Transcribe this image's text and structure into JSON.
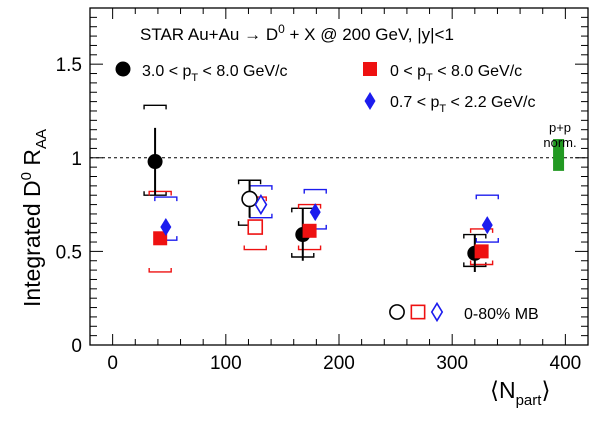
{
  "chart_data": {
    "type": "scatter",
    "title": "STAR Au+Au → D⁰ + X @ 200 GeV,  |y|<1",
    "xlabel": "⟨N_part⟩",
    "ylabel": "Integrated D⁰ R_AA",
    "xlim": [
      -20,
      420
    ],
    "ylim": [
      0,
      1.8
    ],
    "xticks": [
      0,
      100,
      200,
      300,
      400
    ],
    "yticks": [
      0,
      0.5,
      1,
      1.5
    ],
    "xtick_labels": [
      "0",
      "100",
      "200",
      "300",
      "400"
    ],
    "ytick_labels": [
      "0",
      "0.5",
      "1",
      "1.5"
    ],
    "reference_line": 1.0,
    "grid": false,
    "legend_position": "top",
    "series": [
      {
        "name": "3.0 < p_T < 8.0 GeV/c",
        "marker": "circle",
        "color": "#000000",
        "points": [
          {
            "x": 37.5,
            "y": 0.98,
            "stat": 0.18,
            "sys_lo": 0.18,
            "sys_hi": 0.3
          },
          {
            "x": 168,
            "y": 0.59,
            "stat": 0.14,
            "sys_lo": 0.12,
            "sys_hi": 0.14
          },
          {
            "x": 320,
            "y": 0.49,
            "stat": 0.1,
            "sys_lo": 0.07,
            "sys_hi": 0.1
          }
        ]
      },
      {
        "name": "0 < p_T < 8.0 GeV/c",
        "marker": "square",
        "color": "#ee1111",
        "points": [
          {
            "x": 42,
            "y": 0.57,
            "stat": 0.03,
            "sys_lo": 0.18,
            "sys_hi": 0.25
          },
          {
            "x": 174,
            "y": 0.61,
            "stat": 0.03,
            "sys_lo": 0.1,
            "sys_hi": 0.14
          },
          {
            "x": 326,
            "y": 0.5,
            "stat": 0.03,
            "sys_lo": 0.07,
            "sys_hi": 0.12
          }
        ]
      },
      {
        "name": "0.7 < p_T < 2.2 GeV/c",
        "marker": "diamond",
        "color": "#1c1cee",
        "points": [
          {
            "x": 47,
            "y": 0.63,
            "stat": 0.04,
            "sys_lo": 0.07,
            "sys_hi": 0.16
          },
          {
            "x": 179,
            "y": 0.71,
            "stat": 0.04,
            "sys_lo": 0.09,
            "sys_hi": 0.12
          },
          {
            "x": 331,
            "y": 0.64,
            "stat": 0.04,
            "sys_lo": 0.09,
            "sys_hi": 0.16
          }
        ]
      },
      {
        "name": "0-80% MB",
        "marker": "open",
        "points": [
          {
            "marker": "circle",
            "color": "#000000",
            "x": 121,
            "y": 0.78,
            "stat": 0.1,
            "sys_lo": 0.14,
            "sys_hi": 0.1
          },
          {
            "marker": "square",
            "color": "#ee1111",
            "x": 126,
            "y": 0.63,
            "stat": 0.03,
            "sys_lo": 0.12,
            "sys_hi": 0.16
          },
          {
            "marker": "diamond",
            "color": "#1c1cee",
            "x": 131,
            "y": 0.75,
            "stat": 0.03,
            "sys_lo": 0.07,
            "sys_hi": 0.1
          }
        ]
      }
    ],
    "norm_box": {
      "label_line1": "p+p",
      "label_line2": "norm.",
      "x": 394,
      "y_lo": 0.93,
      "y_hi": 1.1,
      "color": "#229922"
    },
    "mb_label": "0-80% MB"
  }
}
